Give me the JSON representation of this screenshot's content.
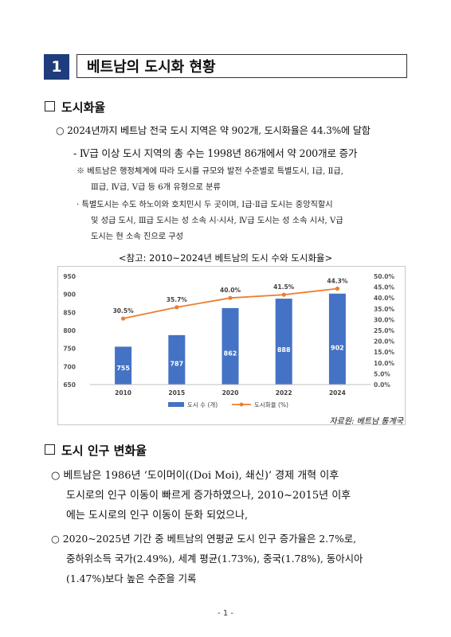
{
  "section": {
    "number": "1",
    "title": "베트남의 도시화 현황"
  },
  "urbanization": {
    "heading": "도시화율",
    "bullet1": "○  2024년까지 베트남 전국 도시 지역은 약 902개, 도시화율은 44.3%에 달함",
    "bullet2": "- Ⅳ급 이상 도시 지역의 총 수는 1998년 86개에서 약 200개로 증가",
    "note1_line1": "※  베트남은 행정체계에 따라 도시를 규모와 발전 수준별로 특별도시, Ⅰ급, Ⅱ급,",
    "note1_line2": "Ⅲ급, Ⅳ급, Ⅴ급 등 6개 유형으로 분류",
    "note2_line1": "·  특별도시는 수도 하노이와 호치민시 두 곳이며, Ⅰ급·Ⅱ급 도시는 중앙직할시",
    "note2_line2": "및 성급 도시, Ⅲ급 도시는 성 소속 시·시사, Ⅳ급 도시는 성 소속 시사, Ⅴ급",
    "note2_line3": "도시는 현 소속 진으로 구성"
  },
  "chart_caption": "<참고: 2010~2024년 베트남의 도시 수와 도시화율>",
  "chart_data": {
    "type": "bar",
    "categories": [
      "2010",
      "2015",
      "2020",
      "2022",
      "2024"
    ],
    "series": [
      {
        "name": "도시 수 (개)",
        "type": "bar",
        "axis": "left",
        "values": [
          755,
          787,
          862,
          888,
          902
        ],
        "color": "#4472c4"
      },
      {
        "name": "도시화율 (%)",
        "type": "line",
        "axis": "right",
        "values": [
          30.5,
          35.7,
          40.0,
          41.5,
          44.3
        ],
        "color": "#ed7d31"
      }
    ],
    "bar_labels": [
      "755",
      "787",
      "862",
      "888",
      "902"
    ],
    "line_labels": [
      "30.5%",
      "35.7%",
      "40.0%",
      "41.5%",
      "44.3%"
    ],
    "ylim_left": [
      650,
      950
    ],
    "yticks_left": [
      "950",
      "900",
      "850",
      "800",
      "750",
      "700",
      "650"
    ],
    "ylim_right": [
      0,
      50
    ],
    "yticks_right": [
      "50.0%",
      "45.0%",
      "40.0%",
      "35.0%",
      "30.0%",
      "25.0%",
      "20.0%",
      "15.0%",
      "10.0%",
      "5.0%",
      "0.0%"
    ],
    "legend_position": "bottom",
    "grid": false
  },
  "source_note": "자료원: 베트남 통계국",
  "population": {
    "heading": "도시 인구 변화율",
    "b1_line1": "○  베트남은 1986년 ‘도이머이((Doi Moi), 쇄신)’ 경제 개혁 이후",
    "b1_line2": "도시로의 인구 이동이 빠르게 증가하였으나, 2010~2015년 이후",
    "b1_line3": "에는 도시로의 인구 이동이 둔화 되었으나,",
    "b2_line1": "○  2020~2025년 기간 중 베트남의 연평균 도시 인구 증가율은 2.7%로,",
    "b2_line2": "중하위소득 국가(2.49%), 세계 평균(1.73%), 중국(1.78%), 동아시아",
    "b2_line3": "(1.47%)보다 높은 수준을 기록"
  },
  "footer": "- 1 -"
}
